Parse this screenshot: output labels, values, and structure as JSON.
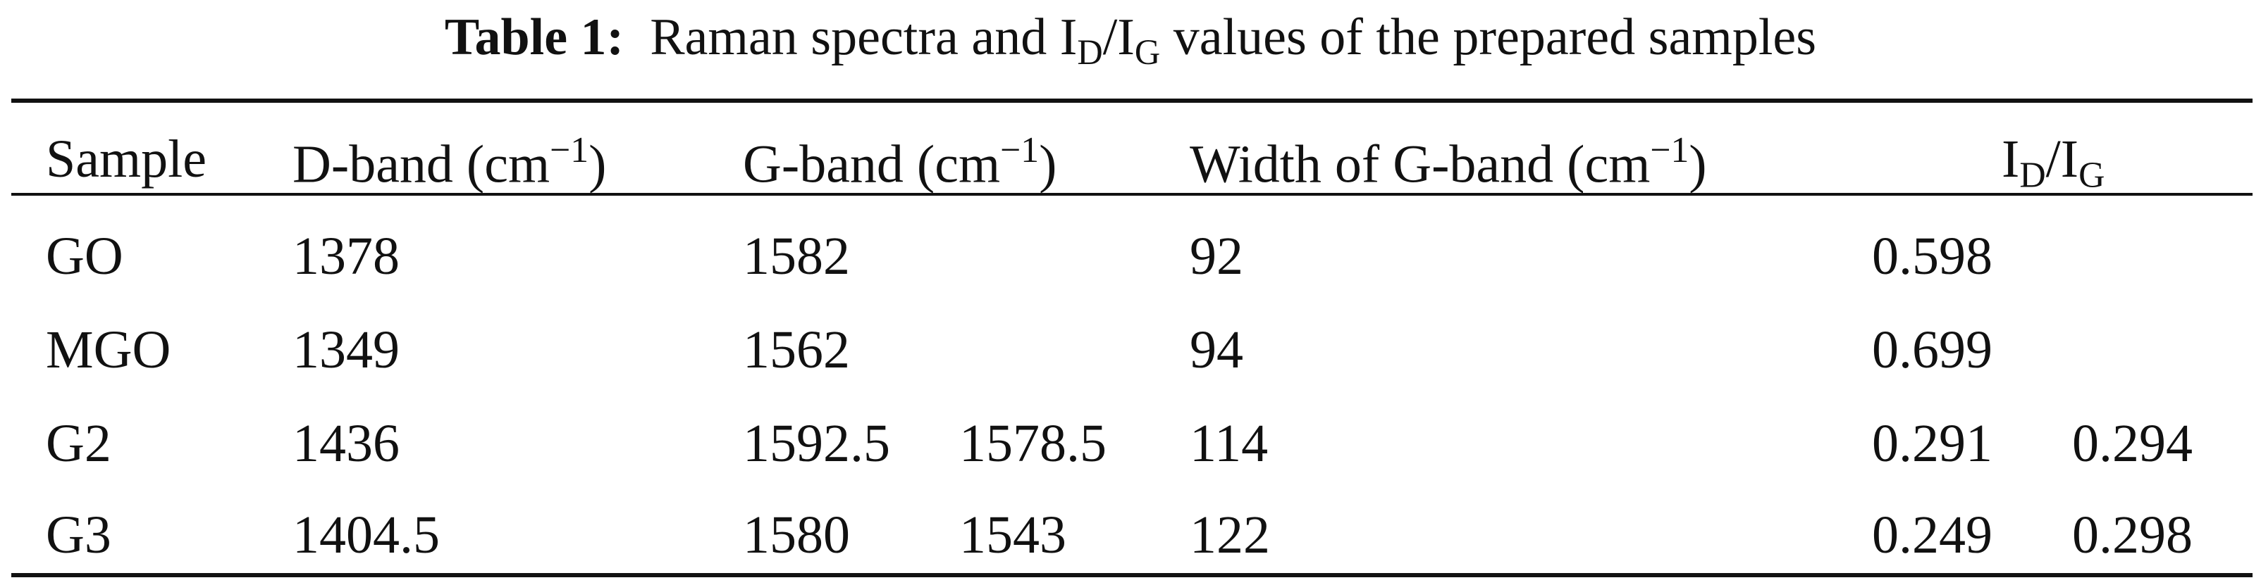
{
  "table": {
    "label": "Table 1:",
    "title": [
      "Raman spectra and I",
      "D",
      "/I",
      "G",
      " values of the prepared samples"
    ],
    "headers": [
      "Sample",
      [
        "D-band (cm",
        "−1",
        ")"
      ],
      [
        "G-band (cm",
        "−1",
        ")"
      ],
      [
        "Width of G-band (cm",
        "−1",
        ")"
      ],
      [
        "I",
        "D",
        "/I",
        "G"
      ]
    ],
    "rows": [
      [
        "GO",
        1378,
        1582,
        92,
        0.598
      ],
      [
        "MGO",
        1349,
        1562,
        94,
        0.699
      ],
      [
        "G2",
        1436,
        [
          1592.5,
          1578.5
        ],
        114,
        [
          0.291,
          0.294
        ]
      ],
      [
        "G3",
        1404.5,
        [
          1580,
          1543
        ],
        122,
        [
          0.249,
          0.298
        ]
      ]
    ]
  }
}
